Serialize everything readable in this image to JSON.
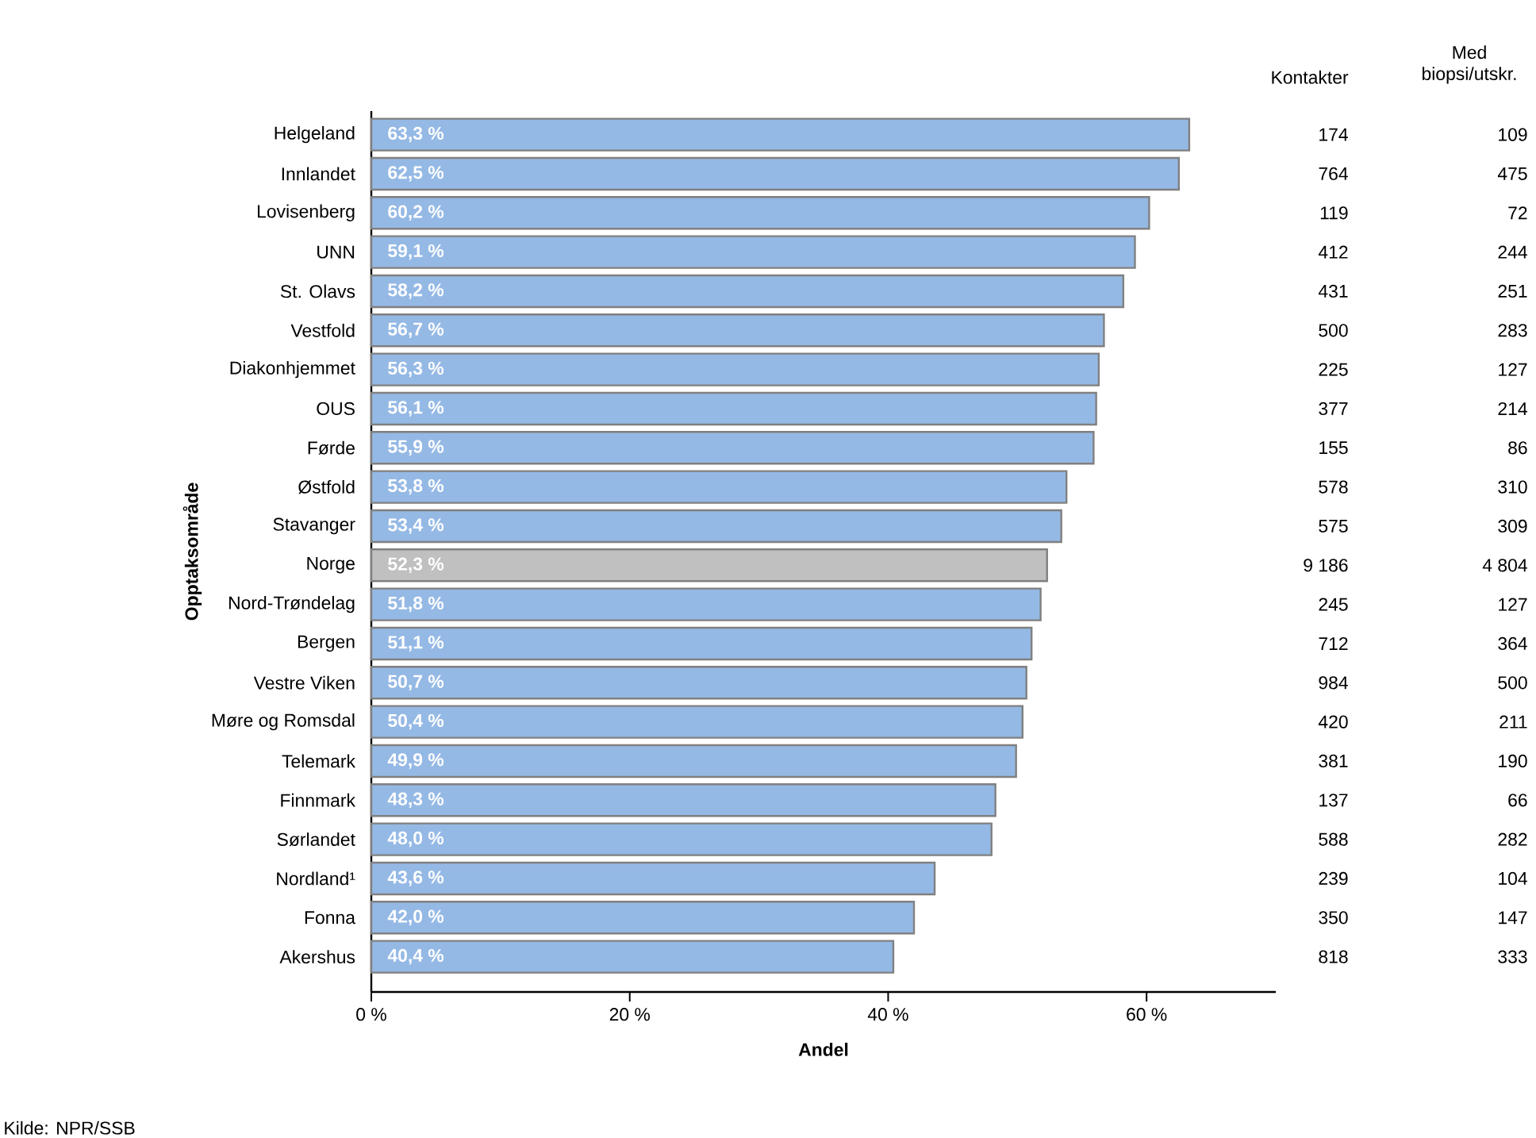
{
  "chart_data": {
    "type": "bar",
    "orientation": "horizontal",
    "xlabel": "Andel",
    "ylabel": "Opptaksområde",
    "categories": [
      "Helgeland",
      "Innlandet",
      "Lovisenberg",
      "UNN",
      "St. Olavs",
      "Vestfold",
      "Diakonhjemmet",
      "OUS",
      "Førde",
      "Østfold",
      "Stavanger",
      "Norge",
      "Nord-Trøndelag",
      "Bergen",
      "Vestre Viken",
      "Møre og Romsdal",
      "Telemark",
      "Finnmark",
      "Sørlandet",
      "Nordland¹",
      "Fonna",
      "Akershus"
    ],
    "values": [
      63.3,
      62.5,
      60.2,
      59.1,
      58.2,
      56.7,
      56.3,
      56.1,
      55.9,
      53.8,
      53.4,
      52.3,
      51.8,
      51.1,
      50.7,
      50.4,
      49.9,
      48.3,
      48.0,
      43.6,
      42.0,
      40.4
    ],
    "colors": [
      "#95b9e5",
      "#95b9e5",
      "#95b9e5",
      "#95b9e5",
      "#95b9e5",
      "#95b9e5",
      "#95b9e5",
      "#95b9e5",
      "#95b9e5",
      "#95b9e5",
      "#95b9e5",
      "#c0c0c0",
      "#95b9e5",
      "#95b9e5",
      "#95b9e5",
      "#95b9e5",
      "#95b9e5",
      "#95b9e5",
      "#95b9e5",
      "#95b9e5",
      "#95b9e5",
      "#95b9e5"
    ],
    "value_labels": [
      "63,3 %",
      "62,5 %",
      "60,2 %",
      "59,1 %",
      "58,2 %",
      "56,7 %",
      "56,3 %",
      "56,1 %",
      "55,9 %",
      "53,8 %",
      "53,4 %",
      "52,3 %",
      "51,8 %",
      "51,1 %",
      "50,7 %",
      "50,4 %",
      "49,9 %",
      "48,3 %",
      "48,0 %",
      "43,6 %",
      "42,0 %",
      "40,4 %"
    ],
    "xlim": [
      0,
      70
    ],
    "xticks": [
      {
        "value": 0,
        "label": "0 %"
      },
      {
        "value": 20,
        "label": "20 %"
      },
      {
        "value": 40,
        "label": "40 %"
      },
      {
        "value": 60,
        "label": "60 %"
      }
    ],
    "annotations": [
      "Kontakter",
      "174",
      "764",
      "119",
      "412",
      "431",
      "500",
      "225",
      "377",
      "155",
      "578",
      "575",
      "9 186",
      "245",
      "712",
      "984",
      "420",
      "381",
      "137",
      "588",
      "239",
      "350",
      "818",
      "Med biopsi/utskr.",
      "109",
      "475",
      "72",
      "244",
      "251",
      "283",
      "127",
      "214",
      "86",
      "310",
      "309",
      "4 804",
      "127",
      "364",
      "500",
      "211",
      "190",
      "66",
      "282",
      "104",
      "147",
      "333",
      "Kilde: NPR/SSB"
    ]
  }
}
